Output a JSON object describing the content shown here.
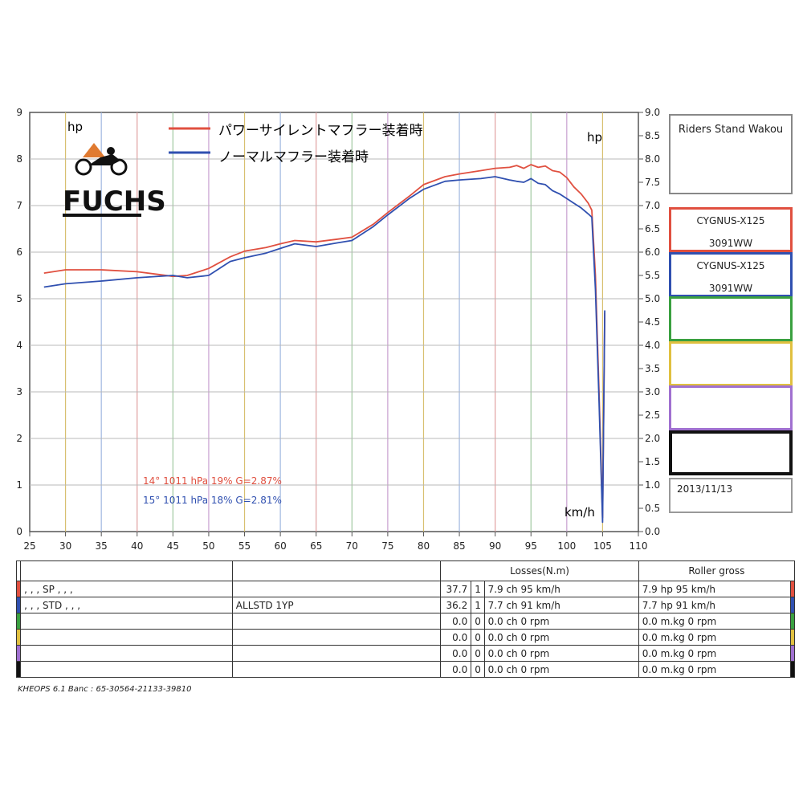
{
  "chart_data": {
    "type": "line",
    "xlabel": "km/h",
    "ylabel_left": "hp",
    "ylabel_right": "hp",
    "xlim": [
      25,
      110
    ],
    "ylim": [
      0,
      9
    ],
    "x_ticks": [
      25,
      30,
      35,
      40,
      45,
      50,
      55,
      60,
      65,
      70,
      75,
      80,
      85,
      90,
      95,
      100,
      105,
      110
    ],
    "y_ticks_left": [
      0,
      1,
      2,
      3,
      4,
      5,
      6,
      7,
      8,
      9
    ],
    "y_ticks_right": [
      "0.0",
      "0.5",
      "1.0",
      "1.5",
      "2.0",
      "2.5",
      "3.0",
      "3.5",
      "4.0",
      "4.5",
      "5.0",
      "5.5",
      "6.0",
      "6.5",
      "7.0",
      "7.5",
      "8.0",
      "8.5",
      "9.0"
    ],
    "grid": true,
    "legend_position": "top-center",
    "series": [
      {
        "name": "パワーサイレントマフラー装着時",
        "color": "#e05040",
        "x": [
          27,
          30,
          35,
          40,
          43,
          45,
          47,
          50,
          53,
          55,
          58,
          60,
          62,
          65,
          68,
          70,
          73,
          75,
          78,
          80,
          83,
          85,
          88,
          90,
          92,
          93,
          94,
          95,
          96,
          97,
          98,
          99,
          100,
          101,
          102,
          103,
          103.5,
          104,
          104.5,
          105,
          105.3
        ],
        "y": [
          5.55,
          5.62,
          5.62,
          5.58,
          5.52,
          5.48,
          5.5,
          5.65,
          5.9,
          6.02,
          6.1,
          6.18,
          6.25,
          6.22,
          6.28,
          6.32,
          6.6,
          6.85,
          7.2,
          7.45,
          7.62,
          7.68,
          7.75,
          7.8,
          7.82,
          7.86,
          7.8,
          7.88,
          7.82,
          7.85,
          7.75,
          7.72,
          7.6,
          7.4,
          7.25,
          7.05,
          6.9,
          5.5,
          3.0,
          0.3,
          4.7
        ]
      },
      {
        "name": "ノーマルマフラー装着時",
        "color": "#3050b0",
        "x": [
          27,
          30,
          35,
          40,
          45,
          47,
          50,
          53,
          55,
          58,
          60,
          62,
          65,
          68,
          70,
          73,
          75,
          78,
          80,
          83,
          85,
          88,
          90,
          92,
          93,
          94,
          95,
          96,
          97,
          98,
          99,
          100,
          101,
          102,
          103,
          103.5,
          104,
          104.5,
          105,
          105.3
        ],
        "y": [
          5.25,
          5.32,
          5.38,
          5.45,
          5.5,
          5.45,
          5.5,
          5.8,
          5.88,
          5.98,
          6.08,
          6.18,
          6.12,
          6.2,
          6.25,
          6.55,
          6.8,
          7.15,
          7.35,
          7.52,
          7.55,
          7.58,
          7.62,
          7.55,
          7.52,
          7.5,
          7.58,
          7.48,
          7.45,
          7.32,
          7.25,
          7.15,
          7.05,
          6.95,
          6.82,
          6.75,
          5.2,
          2.8,
          0.2,
          4.75
        ]
      }
    ],
    "annotations": [
      {
        "text": "14°  1011 hPa  19%   G=2.87%",
        "color": "#e05040"
      },
      {
        "text": "15°  1011 hPa  18%   G=2.81%",
        "color": "#3050b0"
      }
    ],
    "logo": "FUCHS"
  },
  "side_panel": {
    "title": "Riders Stand Wakou",
    "runs": [
      {
        "line1": "CYGNUS-X125",
        "line2": "3091WW",
        "color": "#e05040"
      },
      {
        "line1": "CYGNUS-X125",
        "line2": "3091WW",
        "color": "#3050b0"
      },
      {
        "line1": "",
        "line2": "",
        "color": "#3aa040"
      },
      {
        "line1": "",
        "line2": "",
        "color": "#e0c040"
      },
      {
        "line1": "",
        "line2": "",
        "color": "#a070d0"
      },
      {
        "line1": "",
        "line2": "",
        "color": "#111111"
      }
    ],
    "date": "2013/11/13"
  },
  "table": {
    "headers": {
      "losses": "Losses(N.m)",
      "roller": "Roller gross"
    },
    "rows": [
      {
        "color": "#e05040",
        "name": ", , , SP , , ,",
        "code": "",
        "loss": "37.7",
        "n": "1",
        "ch": "7.9 ch 95 km/h",
        "roller": "7.9 hp 95 km/h"
      },
      {
        "color": "#3050b0",
        "name": ", , , STD , , ,",
        "code": "ALLSTD 1YP",
        "loss": "36.2",
        "n": "1",
        "ch": "7.7 ch 91 km/h",
        "roller": "7.7 hp 91 km/h"
      },
      {
        "color": "#3aa040",
        "name": "",
        "code": "",
        "loss": "0.0",
        "n": "0",
        "ch": "0.0 ch 0 rpm",
        "roller": "0.0 m.kg 0 rpm"
      },
      {
        "color": "#e0c040",
        "name": "",
        "code": "",
        "loss": "0.0",
        "n": "0",
        "ch": "0.0 ch 0 rpm",
        "roller": "0.0 m.kg 0 rpm"
      },
      {
        "color": "#a070d0",
        "name": "",
        "code": "",
        "loss": "0.0",
        "n": "0",
        "ch": "0.0 ch 0 rpm",
        "roller": "0.0 m.kg 0 rpm"
      },
      {
        "color": "#111111",
        "name": "",
        "code": "",
        "loss": "0.0",
        "n": "0",
        "ch": "0.0 ch 0 rpm",
        "roller": "0.0 m.kg 0 rpm"
      }
    ]
  },
  "footer": "KHEOPS 6.1  Banc : 65-30564-21133-39810"
}
